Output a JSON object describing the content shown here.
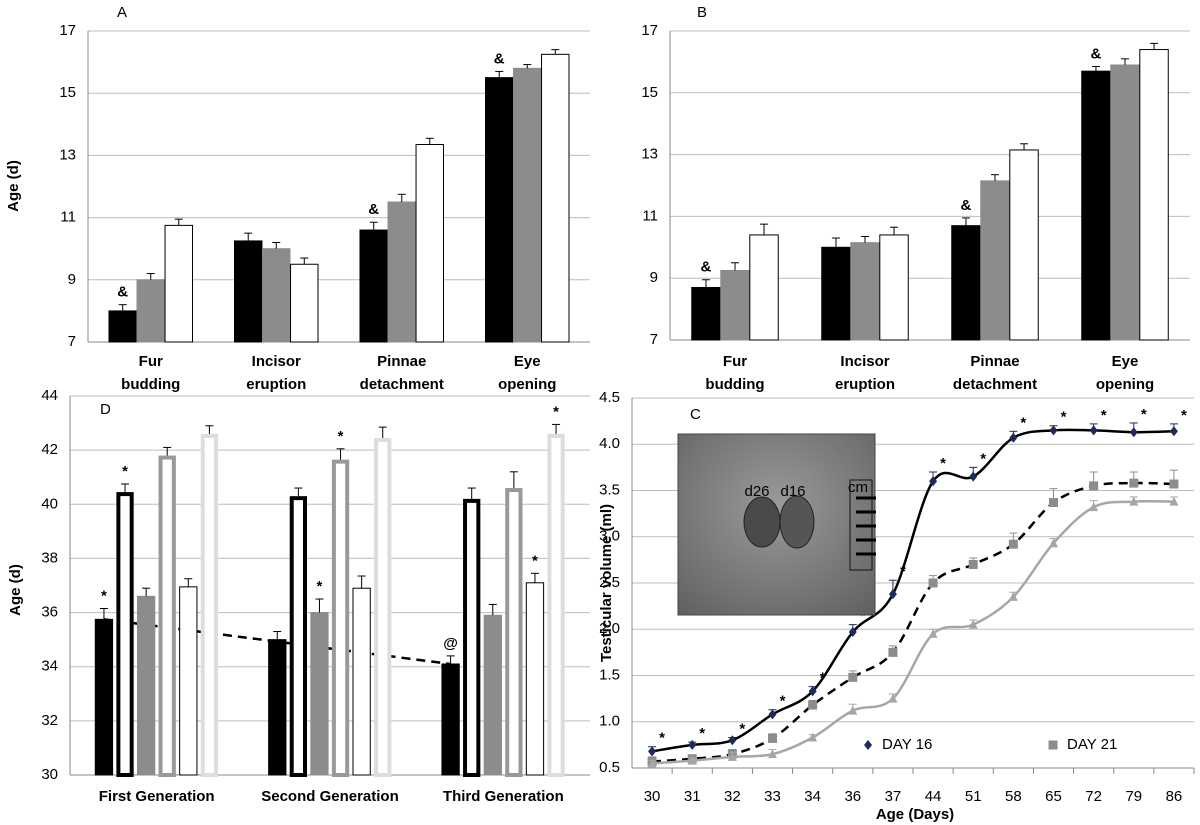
{
  "chart_data": [
    {
      "type": "bar",
      "panel": "A",
      "ylabel": "Age (d)",
      "categories": [
        "Fur budding",
        "Incisor eruption",
        "Pinnae detachment",
        "Eye opening"
      ],
      "series": [
        {
          "color": "#000000",
          "values": [
            8.0,
            10.25,
            10.6,
            15.5
          ],
          "errors": [
            0.2,
            0.25,
            0.25,
            0.2
          ],
          "significance": [
            "&",
            null,
            "&",
            "&"
          ]
        },
        {
          "color": "#8c8c8c",
          "values": [
            9.0,
            10.0,
            11.5,
            15.8
          ],
          "errors": [
            0.2,
            0.2,
            0.25,
            0.12
          ]
        },
        {
          "color": "#ffffff",
          "edge": "#000000",
          "values": [
            10.75,
            9.5,
            13.35,
            16.25
          ],
          "errors": [
            0.2,
            0.2,
            0.2,
            0.15
          ]
        }
      ],
      "ylim": [
        7,
        17
      ],
      "yticks": [
        7,
        9,
        11,
        13,
        15,
        17
      ],
      "grid": true
    },
    {
      "type": "bar",
      "panel": "B",
      "categories": [
        "Fur budding",
        "Incisor eruption",
        "Pinnae detachment",
        "Eye opening"
      ],
      "series": [
        {
          "color": "#000000",
          "values": [
            8.7,
            10.0,
            10.7,
            15.7
          ],
          "errors": [
            0.25,
            0.3,
            0.25,
            0.15
          ],
          "significance": [
            "&",
            null,
            "&",
            "&"
          ]
        },
        {
          "color": "#8c8c8c",
          "values": [
            9.25,
            10.15,
            12.15,
            15.9
          ],
          "errors": [
            0.25,
            0.2,
            0.2,
            0.2
          ]
        },
        {
          "color": "#ffffff",
          "edge": "#000000",
          "values": [
            10.4,
            10.4,
            13.15,
            16.4
          ],
          "errors": [
            0.35,
            0.25,
            0.2,
            0.2
          ]
        }
      ],
      "ylim": [
        7,
        17
      ],
      "yticks": [
        7,
        9,
        11,
        13,
        15,
        17
      ],
      "grid": true
    },
    {
      "type": "line",
      "panel": "C",
      "xlabel": "Age (Days)",
      "ylabel": "Testicular volume (ml)",
      "categories": [
        "30",
        "31",
        "32",
        "33",
        "34",
        "36",
        "37",
        "44",
        "51",
        "58",
        "65",
        "72",
        "79",
        "86"
      ],
      "series": [
        {
          "name": "DAY 16",
          "color": "#1f2a5a",
          "line_color": "#000000",
          "line_style": "solid",
          "marker": "diamond",
          "values": [
            0.68,
            0.75,
            0.8,
            1.08,
            1.33,
            1.97,
            2.38,
            3.6,
            3.65,
            4.07,
            4.15,
            4.15,
            4.13,
            4.14
          ],
          "errors": [
            0.05,
            0.03,
            0.03,
            0.05,
            0.05,
            0.08,
            0.15,
            0.1,
            0.1,
            0.07,
            0.05,
            0.07,
            0.1,
            0.08
          ],
          "significance": [
            "*",
            "*",
            "*",
            "*",
            "*",
            "*",
            "*",
            "*",
            "*",
            "*",
            "*",
            "*",
            "*",
            "*"
          ]
        },
        {
          "name": "DAY 21",
          "color": "#8c8c8c",
          "line_color": "#000000",
          "line_style": "dashed",
          "marker": "square",
          "values": [
            0.57,
            0.6,
            0.65,
            0.82,
            1.18,
            1.48,
            1.75,
            2.5,
            2.7,
            2.92,
            3.37,
            3.55,
            3.58,
            3.57
          ],
          "errors": [
            0.05,
            0.03,
            0.05,
            0.05,
            0.05,
            0.07,
            0.07,
            0.08,
            0.07,
            0.12,
            0.15,
            0.15,
            0.12,
            0.15
          ]
        },
        {
          "color": "#a6a6a6",
          "line_color": "#a6a6a6",
          "line_style": "solid",
          "marker": "triangle",
          "values": [
            0.55,
            0.58,
            0.62,
            0.65,
            0.83,
            1.12,
            1.25,
            1.95,
            2.05,
            2.35,
            2.93,
            3.32,
            3.38,
            3.38
          ],
          "errors": [
            0.03,
            0.03,
            0.05,
            0.05,
            0.03,
            0.07,
            0.05,
            0.05,
            0.05,
            0.05,
            0.05,
            0.07,
            0.05,
            0.05
          ]
        }
      ],
      "ylim": [
        0.5,
        4.5
      ],
      "yticks": [
        0.5,
        {
          "value": 1,
          "label": "1.0"
        },
        1.5,
        {
          "value": 2,
          "label": "2.0"
        },
        2.5,
        {
          "value": 3,
          "label": "3.0"
        },
        3.5,
        {
          "value": 4,
          "label": "4.0"
        },
        4.5
      ],
      "grid": true,
      "legend": "lower center",
      "inset_labels": [
        "d26",
        "d16",
        "cm"
      ]
    },
    {
      "type": "bar",
      "panel": "D",
      "ylabel": "Age (d)",
      "categories": [
        "First Generation",
        "Second Generation",
        "Third Generation"
      ],
      "series": [
        {
          "color": "#000000",
          "values": [
            35.75,
            35.0,
            34.1
          ],
          "errors": [
            0.4,
            0.3,
            0.3
          ],
          "significance": [
            "*",
            null,
            "@"
          ],
          "trend_line": "dashed"
        },
        {
          "color": "#000000",
          "hollow": true,
          "values": [
            40.45,
            40.3,
            40.2
          ],
          "errors": [
            0.3,
            0.3,
            0.4
          ],
          "significance": [
            "*",
            null,
            null
          ]
        },
        {
          "color": "#8c8c8c",
          "values": [
            36.6,
            36.0,
            35.9
          ],
          "errors": [
            0.3,
            0.5,
            0.4
          ],
          "significance": [
            null,
            "*",
            null
          ]
        },
        {
          "color": "#999999",
          "hollow": true,
          "values": [
            41.8,
            41.65,
            40.6
          ],
          "errors": [
            0.3,
            0.4,
            0.6
          ],
          "significance": [
            null,
            "*",
            null
          ]
        },
        {
          "color": "#ffffff",
          "edge": "#000000",
          "values": [
            36.95,
            36.9,
            37.1
          ],
          "errors": [
            0.3,
            0.45,
            0.35
          ],
          "significance": [
            null,
            null,
            "*"
          ]
        },
        {
          "color": "#dddddd",
          "hollow": true,
          "values": [
            42.6,
            42.45,
            42.6
          ],
          "errors": [
            0.3,
            0.4,
            0.35
          ],
          "significance": [
            null,
            null,
            "*"
          ]
        }
      ],
      "ylim": [
        30,
        44
      ],
      "yticks": [
        30,
        32,
        34,
        36,
        38,
        40,
        42,
        44
      ],
      "grid": true
    }
  ]
}
